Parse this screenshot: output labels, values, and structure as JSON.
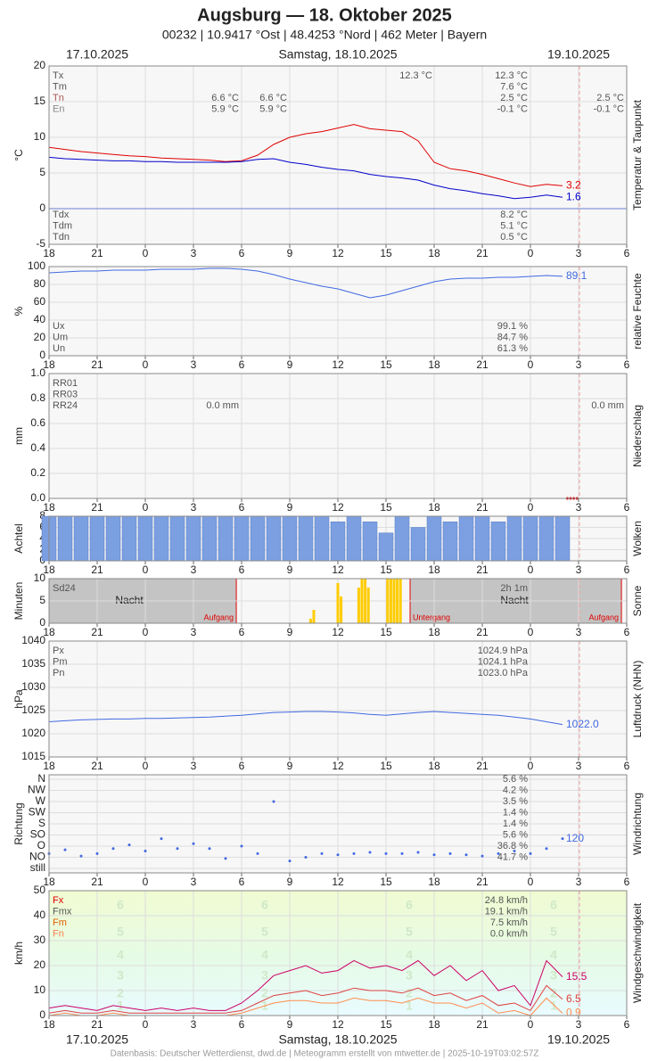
{
  "title": "Augsburg  —  18. Oktober 2025",
  "subtitle": "00232  |  10.9417 °Ost  |  48.4253 °Nord  |  462 Meter  |  Bayern",
  "dates": [
    {
      "label": "17.10.2025",
      "x": 21
    },
    {
      "label": "Samstag, 18.10.2025",
      "x": 36
    },
    {
      "label": "19.10.2025",
      "x": 51
    }
  ],
  "footer": "Datenbasis: Deutscher Wetterdienst, dwd.de | Meteogramm erstellt von mtwetter.de | 2025-10-19T03:02:57Z",
  "time_axis": {
    "xlim": [
      18,
      54
    ],
    "xticks": [
      18,
      21,
      {
        "value": 24,
        "label": "0"
      },
      {
        "value": 27,
        "label": "3"
      },
      {
        "value": 30,
        "label": "6"
      },
      {
        "value": 33,
        "label": "9"
      },
      {
        "value": 36,
        "label": "12"
      },
      {
        "value": 39,
        "label": "15"
      },
      {
        "value": 42,
        "label": "18"
      },
      {
        "value": 45,
        "label": "21"
      },
      {
        "value": 48,
        "label": "0"
      },
      {
        "value": 51,
        "label": "3"
      },
      {
        "value": 54,
        "label": "6"
      }
    ]
  },
  "chart_data": [
    {
      "type": "line",
      "ylabel": "°C",
      "side_label": "Temperatur & Taupunkt",
      "ylim": [
        -5,
        20
      ],
      "yticks": [
        -5,
        0,
        5,
        10,
        15,
        20
      ],
      "zero_line": "#6b7fd0",
      "x": [
        18,
        19,
        20,
        21,
        22,
        23,
        24,
        25,
        26,
        27,
        28,
        29,
        30,
        31,
        32,
        33,
        34,
        35,
        36,
        37,
        38,
        39,
        40,
        41,
        42,
        43,
        44,
        45,
        46,
        47,
        48,
        49,
        50
      ],
      "series": [
        {
          "color": "#e00000",
          "label_last": true,
          "values": [
            8.6,
            8.3,
            8.0,
            7.8,
            7.6,
            7.4,
            7.3,
            7.1,
            7.0,
            6.9,
            6.8,
            6.6,
            6.7,
            7.5,
            9.0,
            10.0,
            10.5,
            10.8,
            11.3,
            11.8,
            11.2,
            11.0,
            10.8,
            9.5,
            6.5,
            5.6,
            5.3,
            4.8,
            4.2,
            3.6,
            3.1,
            3.4,
            3.2
          ]
        },
        {
          "color": "#0000cc",
          "label_last": true,
          "values": [
            7.2,
            7.0,
            6.9,
            6.8,
            6.7,
            6.7,
            6.6,
            6.6,
            6.5,
            6.5,
            6.5,
            6.5,
            6.6,
            6.9,
            7.0,
            6.5,
            6.2,
            5.8,
            5.5,
            5.3,
            4.8,
            4.5,
            4.3,
            4.0,
            3.3,
            2.8,
            2.5,
            2.1,
            1.8,
            1.4,
            1.6,
            1.9,
            1.6
          ]
        }
      ],
      "stats": [
        {
          "labels": [
            "Tx",
            "Tm",
            "Tn",
            "En"
          ],
          "colors": [
            "#555",
            "#555",
            "#a55",
            "#888"
          ],
          "columns": [
            [
              null,
              null,
              "6.6 °C",
              "5.9 °C"
            ],
            [
              null,
              null,
              "6.6 °C",
              "5.9 °C"
            ],
            [
              "12.3 °C",
              null,
              null,
              null
            ],
            [
              "12.3 °C",
              "7.6 °C",
              "2.5 °C",
              "-0.1 °C"
            ],
            [
              null,
              null,
              "2.5 °C",
              "-0.1 °C"
            ]
          ]
        },
        {
          "labels": [
            "Tdx",
            "Tdm",
            "Tdn"
          ],
          "columns": [
            [
              "8.2 °C",
              "5.1 °C",
              "0.5 °C"
            ]
          ]
        }
      ]
    },
    {
      "type": "line",
      "ylabel": "%",
      "side_label": "relative Feuchte",
      "ylim": [
        0,
        100
      ],
      "yticks": [
        0,
        20,
        40,
        60,
        80,
        100
      ],
      "x": [
        18,
        19,
        20,
        21,
        22,
        23,
        24,
        25,
        26,
        27,
        28,
        29,
        30,
        31,
        32,
        33,
        34,
        35,
        36,
        37,
        38,
        39,
        40,
        41,
        42,
        43,
        44,
        45,
        46,
        47,
        48,
        49,
        50
      ],
      "series": [
        {
          "color": "#4169e1",
          "label_last": true,
          "values": [
            93,
            94,
            95,
            95,
            96,
            96,
            96,
            97,
            97,
            97,
            98,
            98,
            97,
            95,
            91,
            86,
            82,
            78,
            75,
            70,
            65,
            68,
            73,
            78,
            83,
            86,
            87,
            87,
            88,
            88,
            89,
            90,
            89.1
          ]
        }
      ],
      "stats": [
        {
          "labels": [
            "Ux",
            "Um",
            "Un"
          ],
          "columns": [
            [
              "99.1 %",
              "84.7 %",
              "61.3 %"
            ]
          ]
        }
      ]
    },
    {
      "type": "scatter",
      "ylabel": "mm",
      "side_label": "Niederschlag",
      "ylim": [
        0,
        1
      ],
      "yticks": [
        {
          "value": 0,
          "label": "0.0"
        },
        {
          "value": 0.2,
          "label": "0.2"
        },
        {
          "value": 0.4,
          "label": "0.4"
        },
        {
          "value": 0.6,
          "label": "0.6"
        },
        {
          "value": 0.8,
          "label": "0.8"
        },
        {
          "value": 1,
          "label": "1.0"
        }
      ],
      "series": [
        {
          "color": "#e00000",
          "x": [
            50.3,
            50.5,
            50.7,
            50.9
          ],
          "values": [
            0,
            0,
            0,
            0
          ]
        }
      ],
      "stats": [
        {
          "labels": [
            "RR01",
            "RR03",
            "RR24"
          ],
          "columns": [
            [
              null,
              null,
              "0.0 mm"
            ],
            [
              null,
              null,
              "0.0 mm"
            ]
          ]
        }
      ]
    },
    {
      "type": "bar",
      "ylabel": "Achtel",
      "side_label": "Wolken",
      "ylim": [
        0,
        8
      ],
      "yticks": [
        0,
        2,
        4,
        6,
        8
      ],
      "x": [
        18,
        19,
        20,
        21,
        22,
        23,
        24,
        25,
        26,
        27,
        28,
        29,
        30,
        31,
        32,
        33,
        34,
        35,
        36,
        37,
        38,
        39,
        40,
        41,
        42,
        43,
        44,
        45,
        46,
        47,
        48,
        49,
        50
      ],
      "series": [
        {
          "color": "#7b9fe0",
          "values": [
            8,
            8,
            8,
            8,
            8,
            8,
            8,
            8,
            8,
            8,
            8,
            8,
            8,
            8,
            8,
            8,
            8,
            8,
            7,
            8,
            7,
            5,
            8,
            6,
            8,
            7,
            8,
            8,
            7,
            8,
            8,
            8,
            8
          ]
        }
      ]
    },
    {
      "type": "bar",
      "ylabel": "Minuten",
      "side_label": "Sonne",
      "ylim": [
        0,
        10
      ],
      "yticks": [
        0,
        5,
        10
      ],
      "series": [
        {
          "color": "#ffcc00",
          "x": [
            34.3,
            34.5,
            36.0,
            36.2,
            37.3,
            37.5,
            37.7,
            37.9,
            39.1,
            39.3,
            39.5,
            39.7,
            39.9
          ],
          "values": [
            1,
            3,
            9,
            6,
            8,
            10,
            10,
            8,
            10,
            10,
            10,
            10,
            10
          ]
        }
      ],
      "events": [
        {
          "label": "Aufgang",
          "x": 29.67
        },
        {
          "label": "Untergang",
          "x": 40.5
        },
        {
          "label": "Aufgang",
          "x": 53.67
        }
      ],
      "night_labels": [
        {
          "label": "Nacht",
          "x": 23
        },
        {
          "label": "Nacht",
          "x": 47
        }
      ],
      "stats": [
        {
          "labels": [
            "Sd24"
          ],
          "columns": [
            [
              "2h 1m"
            ]
          ]
        }
      ]
    },
    {
      "type": "line",
      "ylabel": "hPa",
      "side_label": "Luftdruck (NHN)",
      "ylim": [
        1015,
        1040
      ],
      "yticks": [
        1015,
        1020,
        1025,
        1030,
        1035,
        1040
      ],
      "x": [
        18,
        19,
        20,
        21,
        22,
        23,
        24,
        25,
        26,
        27,
        28,
        29,
        30,
        31,
        32,
        33,
        34,
        35,
        36,
        37,
        38,
        39,
        40,
        41,
        42,
        43,
        44,
        45,
        46,
        47,
        48,
        49,
        50
      ],
      "series": [
        {
          "color": "#4169e1",
          "label_last": true,
          "values": [
            1022.6,
            1022.8,
            1023.0,
            1023.1,
            1023.2,
            1023.2,
            1023.3,
            1023.3,
            1023.4,
            1023.5,
            1023.6,
            1023.8,
            1024.0,
            1024.3,
            1024.6,
            1024.7,
            1024.8,
            1024.8,
            1024.7,
            1024.5,
            1024.2,
            1024.0,
            1024.3,
            1024.6,
            1024.8,
            1024.6,
            1024.4,
            1024.2,
            1024.0,
            1023.6,
            1023.2,
            1022.6,
            1022.0
          ],
          "value_labels": [
            null,
            null,
            null,
            null,
            null,
            null,
            null,
            null,
            null,
            null,
            null,
            null,
            null,
            null,
            null,
            null,
            null,
            null,
            null,
            null,
            null,
            null,
            null,
            null,
            null,
            null,
            null,
            null,
            null,
            null,
            null,
            null,
            "1022.0"
          ]
        }
      ],
      "stats": [
        {
          "labels": [
            "Px",
            "Pm",
            "Pn"
          ],
          "columns": [
            [
              "1024.9 hPa",
              "1024.1 hPa",
              "1023.0 hPa"
            ]
          ]
        }
      ]
    },
    {
      "type": "scatter",
      "ylabel": "Richtung",
      "side_label": "Windrichtung",
      "ylim": [
        0,
        360
      ],
      "yticks": [
        {
          "value": 0,
          "label": "still"
        },
        {
          "value": 45,
          "label": "NO"
        },
        {
          "value": 90,
          "label": "O"
        },
        {
          "value": 135,
          "label": "SO"
        },
        {
          "value": 180,
          "label": "S"
        },
        {
          "value": 225,
          "label": "SW"
        },
        {
          "value": 270,
          "label": "W"
        },
        {
          "value": 315,
          "label": "NW"
        },
        {
          "value": 360,
          "label": "N"
        }
      ],
      "shares": [
        null,
        "41.7 %",
        "36.8 %",
        "5.6 %",
        "1.4 %",
        "1.4 %",
        "3.5 %",
        "4.2 %",
        "5.6 %"
      ],
      "x": [
        18,
        19,
        20,
        21,
        22,
        23,
        24,
        25,
        26,
        27,
        28,
        29,
        30,
        31,
        32,
        33,
        34,
        35,
        36,
        37,
        38,
        39,
        40,
        41,
        42,
        43,
        44,
        45,
        46,
        47,
        48,
        49,
        50
      ],
      "series": [
        {
          "color": "#4169e1",
          "label_last": true,
          "values": [
            60,
            75,
            50,
            60,
            80,
            95,
            70,
            120,
            80,
            100,
            80,
            40,
            90,
            60,
            270,
            30,
            45,
            60,
            55,
            60,
            65,
            60,
            60,
            65,
            55,
            60,
            55,
            50,
            60,
            70,
            60,
            80,
            120
          ]
        }
      ]
    },
    {
      "type": "line",
      "ylabel": "km/h",
      "side_label": "Windgeschwindigkeit",
      "ylim": [
        0,
        50
      ],
      "yticks": [
        0,
        10,
        20,
        30,
        40,
        50
      ],
      "beaufort": [
        1,
        2,
        3,
        4,
        5,
        6
      ],
      "x": [
        18,
        19,
        20,
        21,
        22,
        23,
        24,
        25,
        26,
        27,
        28,
        29,
        30,
        31,
        32,
        33,
        34,
        35,
        36,
        37,
        38,
        39,
        40,
        41,
        42,
        43,
        44,
        45,
        46,
        47,
        48,
        49,
        50
      ],
      "series": [
        {
          "color": "#cc0066",
          "label_last": true,
          "values": [
            3,
            4,
            3,
            2,
            4,
            3,
            2,
            3,
            2,
            3,
            2,
            2,
            5,
            10,
            16,
            18,
            20,
            17,
            18,
            22,
            19,
            20,
            18,
            22,
            16,
            20,
            14,
            18,
            10,
            12,
            4,
            22,
            15.5
          ]
        },
        {
          "color": "#e04040",
          "label_last": true,
          "values": [
            1,
            2,
            1,
            1,
            2,
            1,
            1,
            1,
            1,
            1,
            1,
            1,
            2,
            5,
            8,
            9,
            10,
            8,
            9,
            11,
            10,
            10,
            9,
            11,
            8,
            9,
            6,
            8,
            4,
            5,
            2,
            12,
            6.5
          ]
        },
        {
          "color": "#ff8c50",
          "label_last": true,
          "values": [
            0,
            1,
            0,
            0,
            1,
            0,
            0,
            0,
            0,
            0,
            0,
            0,
            1,
            3,
            5,
            6,
            6,
            5,
            5,
            7,
            6,
            6,
            5,
            7,
            5,
            5,
            3,
            5,
            1,
            2,
            0,
            7,
            0.9
          ]
        }
      ],
      "stats": [
        {
          "labels": [
            "Fx",
            "Fmx",
            "Fm",
            "Fn"
          ],
          "colors": [
            "#e00000",
            "#555",
            "#e06000",
            "#ff7f50"
          ],
          "columns": [
            [
              "24.8 km/h",
              "19.1 km/h",
              "7.5 km/h",
              "0.0 km/h"
            ]
          ]
        }
      ]
    }
  ]
}
